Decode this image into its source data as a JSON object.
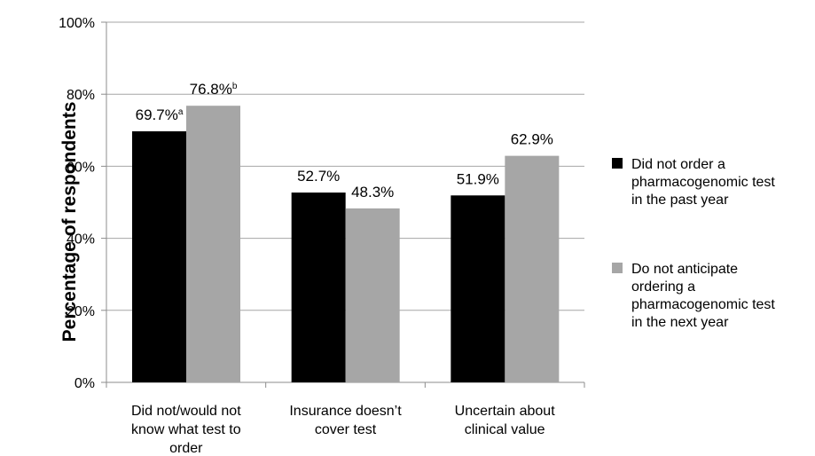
{
  "chart_data": {
    "type": "bar",
    "title": "",
    "xlabel": "",
    "ylabel": "Percentage of respondents",
    "ylim": [
      0,
      100
    ],
    "y_ticks": [
      "0%",
      "20%",
      "40%",
      "60%",
      "80%",
      "100%"
    ],
    "y_tick_values": [
      0,
      20,
      40,
      60,
      80,
      100
    ],
    "grid": true,
    "legend_position": "right",
    "categories": [
      [
        "Did not/would not",
        "know what test to",
        "order"
      ],
      [
        "Insurance doesn’t",
        "cover test"
      ],
      [
        "Uncertain about",
        "clinical value"
      ]
    ],
    "series": [
      {
        "legend_lines": [
          "Did not order a",
          "pharmacogenomic test",
          "in the past year"
        ],
        "color": "#000000",
        "values": [
          69.7,
          52.7,
          51.9
        ],
        "labels": [
          "69.7%",
          "52.7%",
          "51.9%"
        ],
        "label_sups": [
          "a",
          "",
          ""
        ]
      },
      {
        "legend_lines": [
          "Do not anticipate",
          "ordering a",
          "pharmacogenomic test",
          "in the next year"
        ],
        "color": "#a6a6a6",
        "values": [
          76.8,
          48.3,
          62.9
        ],
        "labels": [
          "76.8%",
          "48.3%",
          "62.9%"
        ],
        "label_sups": [
          "b",
          "",
          ""
        ]
      }
    ]
  }
}
